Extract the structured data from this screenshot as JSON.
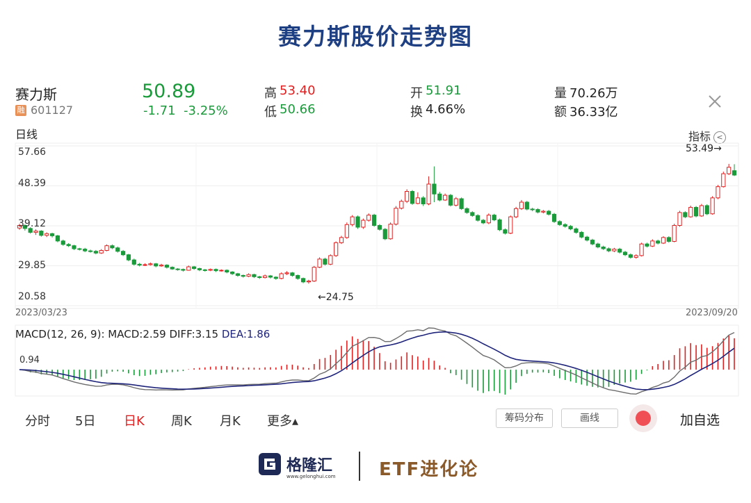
{
  "page_title": "赛力斯股价走势图",
  "stock": {
    "name": "赛力斯",
    "badge": "融",
    "code": "601127",
    "price": "50.89",
    "change": "-1.71",
    "change_pct": "-3.25%"
  },
  "quote": {
    "high_label": "高",
    "high": "53.40",
    "low_label": "低",
    "low": "50.66",
    "open_label": "开",
    "open": "51.91",
    "turnover_label": "换",
    "turnover": "4.66%",
    "volume_label": "量",
    "volume": "70.26万",
    "amount_label": "额",
    "amount": "36.33亿"
  },
  "chart": {
    "period_label": "日线",
    "indicator_label": "指标",
    "y_ticks": [
      "57.66",
      "48.39",
      "39.12",
      "29.85",
      "20.58"
    ],
    "start_date": "2023/03/23",
    "end_date": "2023/09/20",
    "max_annotation": "53.49→",
    "min_annotation": "←24.75"
  },
  "macd": {
    "title_prefix": "MACD(12, 26, 9):",
    "macd_text": "MACD:2.59",
    "diff_text": "DIFF:3.15",
    "dea_text": "DEA:1.86",
    "y_tick": "0.94"
  },
  "tabs": [
    {
      "label": "分时"
    },
    {
      "label": "5日"
    },
    {
      "label": "日K"
    },
    {
      "label": "周K"
    },
    {
      "label": "月K"
    },
    {
      "label": "更多▴"
    }
  ],
  "buttons": {
    "chips": "筹码分布",
    "draw": "画线",
    "add_watch": "加自选"
  },
  "footer": {
    "logo_name": "格隆汇",
    "logo_url": "www.gelonghui.com",
    "brand": "ETF进化论"
  },
  "colors": {
    "up": "#e02020",
    "down": "#1a9a3a",
    "title": "#1e3f82",
    "dif": "#6b6b6b",
    "dea": "#1e237a"
  },
  "chart_data": {
    "type": "candlestick",
    "title": "赛力斯股价走势图",
    "x_range": [
      "2023/03/23",
      "2023/09/20"
    ],
    "ylim": [
      20.58,
      57.66
    ],
    "y_ticks": [
      57.66,
      48.39,
      39.12,
      29.85,
      20.58
    ],
    "grid": true,
    "max_marker": 53.49,
    "min_marker": 24.75,
    "candles": [
      [
        38.6,
        39.2,
        39.6,
        38.2
      ],
      [
        39.2,
        38.5,
        39.5,
        38.0
      ],
      [
        38.5,
        37.6,
        38.8,
        37.3
      ],
      [
        37.6,
        37.9,
        38.3,
        37.0
      ],
      [
        37.9,
        36.9,
        38.1,
        36.6
      ],
      [
        36.9,
        37.3,
        37.6,
        36.5
      ],
      [
        37.3,
        36.8,
        37.5,
        36.4
      ],
      [
        36.8,
        35.6,
        37.0,
        35.3
      ],
      [
        35.6,
        34.8,
        35.9,
        34.5
      ],
      [
        34.8,
        34.5,
        35.1,
        34.2
      ],
      [
        34.5,
        33.8,
        34.7,
        33.5
      ],
      [
        33.8,
        33.7,
        34.0,
        33.4
      ],
      [
        33.7,
        33.3,
        34.0,
        33.0
      ],
      [
        33.3,
        33.2,
        33.6,
        32.9
      ],
      [
        33.2,
        32.8,
        33.5,
        32.5
      ],
      [
        32.8,
        33.4,
        33.7,
        32.6
      ],
      [
        33.4,
        34.5,
        34.8,
        33.2
      ],
      [
        34.5,
        34.0,
        34.8,
        33.7
      ],
      [
        34.0,
        33.2,
        34.3,
        32.9
      ],
      [
        33.2,
        32.4,
        33.5,
        32.1
      ],
      [
        32.4,
        31.2,
        32.6,
        30.9
      ],
      [
        31.2,
        30.2,
        31.5,
        29.9
      ],
      [
        30.2,
        30.0,
        30.5,
        29.7
      ],
      [
        30.0,
        30.1,
        30.4,
        29.8
      ],
      [
        30.1,
        30.3,
        30.6,
        29.9
      ],
      [
        30.3,
        29.8,
        30.5,
        29.5
      ],
      [
        29.8,
        30.0,
        30.3,
        29.6
      ],
      [
        30.0,
        29.5,
        30.2,
        29.2
      ],
      [
        29.5,
        29.1,
        29.7,
        28.9
      ],
      [
        29.1,
        29.0,
        29.3,
        28.7
      ],
      [
        29.0,
        28.8,
        29.2,
        28.5
      ],
      [
        28.8,
        29.6,
        29.9,
        28.7
      ],
      [
        29.6,
        29.2,
        29.8,
        28.9
      ],
      [
        29.2,
        28.9,
        29.4,
        28.6
      ],
      [
        28.9,
        28.8,
        29.1,
        28.5
      ],
      [
        28.8,
        29.0,
        29.2,
        28.6
      ],
      [
        29.0,
        28.7,
        29.2,
        28.4
      ],
      [
        28.7,
        28.8,
        29.0,
        28.5
      ],
      [
        28.8,
        28.4,
        29.0,
        28.1
      ],
      [
        28.4,
        28.0,
        28.6,
        27.7
      ],
      [
        28.0,
        27.6,
        28.2,
        27.3
      ],
      [
        27.6,
        27.4,
        27.8,
        27.1
      ],
      [
        27.4,
        27.8,
        28.1,
        27.2
      ],
      [
        27.8,
        27.3,
        28.0,
        27.0
      ],
      [
        27.3,
        27.1,
        27.5,
        26.8
      ],
      [
        27.1,
        27.5,
        27.8,
        26.9
      ],
      [
        27.5,
        27.2,
        27.7,
        26.9
      ],
      [
        27.2,
        26.9,
        27.4,
        26.6
      ],
      [
        26.9,
        28.0,
        28.3,
        26.7
      ],
      [
        28.0,
        28.2,
        28.6,
        27.7
      ],
      [
        28.2,
        27.6,
        28.4,
        27.3
      ],
      [
        27.6,
        26.9,
        27.8,
        26.6
      ],
      [
        26.9,
        26.1,
        27.1,
        25.8
      ],
      [
        26.1,
        26.3,
        26.6,
        25.7
      ],
      [
        26.3,
        29.5,
        29.8,
        26.1
      ],
      [
        29.5,
        31.4,
        31.8,
        29.3
      ],
      [
        31.4,
        30.2,
        31.7,
        29.9
      ],
      [
        30.2,
        32.2,
        32.5,
        30.0
      ],
      [
        32.2,
        35.2,
        35.5,
        31.9
      ],
      [
        35.2,
        36.4,
        36.8,
        34.9
      ],
      [
        36.4,
        39.4,
        39.9,
        36.1
      ],
      [
        39.4,
        41.2,
        41.6,
        39.0
      ],
      [
        41.2,
        38.8,
        41.5,
        38.4
      ],
      [
        38.8,
        40.4,
        40.8,
        38.4
      ],
      [
        40.4,
        41.6,
        42.0,
        40.1
      ],
      [
        41.6,
        39.2,
        41.9,
        38.9
      ],
      [
        39.2,
        38.3,
        39.5,
        38.0
      ],
      [
        38.3,
        36.1,
        38.6,
        35.8
      ],
      [
        36.1,
        39.5,
        39.9,
        35.9
      ],
      [
        39.5,
        43.2,
        43.7,
        39.2
      ],
      [
        43.2,
        44.8,
        45.2,
        42.9
      ],
      [
        44.8,
        47.1,
        47.6,
        44.4
      ],
      [
        47.1,
        44.3,
        47.4,
        44.0
      ],
      [
        44.3,
        45.6,
        46.9,
        44.1
      ],
      [
        45.6,
        44.2,
        46.0,
        43.7
      ],
      [
        44.2,
        48.8,
        50.6,
        43.9
      ],
      [
        48.8,
        46.5,
        52.9,
        44.6
      ],
      [
        46.5,
        45.1,
        47.0,
        44.8
      ],
      [
        45.1,
        46.2,
        46.6,
        44.9
      ],
      [
        46.2,
        43.9,
        46.5,
        43.6
      ],
      [
        43.9,
        45.4,
        45.8,
        43.6
      ],
      [
        45.4,
        43.1,
        45.7,
        42.8
      ],
      [
        43.1,
        42.2,
        43.4,
        41.9
      ],
      [
        42.2,
        41.5,
        42.5,
        41.2
      ],
      [
        41.5,
        40.4,
        41.8,
        40.1
      ],
      [
        40.4,
        39.8,
        40.7,
        39.5
      ],
      [
        39.8,
        41.6,
        42.0,
        39.5
      ],
      [
        41.6,
        40.5,
        41.9,
        40.2
      ],
      [
        40.5,
        38.2,
        40.8,
        37.9
      ],
      [
        38.2,
        37.4,
        38.5,
        37.1
      ],
      [
        37.4,
        41.2,
        41.5,
        37.2
      ],
      [
        41.2,
        43.1,
        43.5,
        40.9
      ],
      [
        43.1,
        44.6,
        45.1,
        42.8
      ],
      [
        44.6,
        43.0,
        44.9,
        42.7
      ],
      [
        43.0,
        42.9,
        43.3,
        42.5
      ],
      [
        42.9,
        42.3,
        43.2,
        42.0
      ],
      [
        42.3,
        42.5,
        42.8,
        42.0
      ],
      [
        42.5,
        41.8,
        42.8,
        41.5
      ],
      [
        41.8,
        40.1,
        42.1,
        39.8
      ],
      [
        40.1,
        39.4,
        40.4,
        39.1
      ],
      [
        39.4,
        39.0,
        39.7,
        38.7
      ],
      [
        39.0,
        38.4,
        39.3,
        38.1
      ],
      [
        38.4,
        37.6,
        38.7,
        37.3
      ],
      [
        37.6,
        36.5,
        37.9,
        36.2
      ],
      [
        36.5,
        35.8,
        36.8,
        35.5
      ],
      [
        35.8,
        34.9,
        36.1,
        34.6
      ],
      [
        34.9,
        34.2,
        35.2,
        33.9
      ],
      [
        34.2,
        33.8,
        34.5,
        33.5
      ],
      [
        33.8,
        33.3,
        34.1,
        33.0
      ],
      [
        33.3,
        33.7,
        34.0,
        33.0
      ],
      [
        33.7,
        33.0,
        34.0,
        32.7
      ],
      [
        33.0,
        32.4,
        33.3,
        32.1
      ],
      [
        32.4,
        31.8,
        32.7,
        31.5
      ],
      [
        31.8,
        32.2,
        32.5,
        31.5
      ],
      [
        32.2,
        34.9,
        35.2,
        32.0
      ],
      [
        34.9,
        34.4,
        35.2,
        34.1
      ],
      [
        34.4,
        35.6,
        36.0,
        34.2
      ],
      [
        35.6,
        35.1,
        35.9,
        34.8
      ],
      [
        35.1,
        36.4,
        36.7,
        34.9
      ],
      [
        36.4,
        35.5,
        36.7,
        35.2
      ],
      [
        35.5,
        39.2,
        39.6,
        35.3
      ],
      [
        39.2,
        42.2,
        42.6,
        38.9
      ],
      [
        42.2,
        41.2,
        42.5,
        40.9
      ],
      [
        41.2,
        43.4,
        43.8,
        41.0
      ],
      [
        43.4,
        41.4,
        43.7,
        41.1
      ],
      [
        41.4,
        43.8,
        44.2,
        41.2
      ],
      [
        43.8,
        41.9,
        44.1,
        41.6
      ],
      [
        41.9,
        45.6,
        46.0,
        41.7
      ],
      [
        45.6,
        48.2,
        48.6,
        45.3
      ],
      [
        48.2,
        51.2,
        51.7,
        48.0
      ],
      [
        51.2,
        52.7,
        53.49,
        50.9
      ],
      [
        51.91,
        50.89,
        53.4,
        50.66
      ]
    ],
    "macd": {
      "title": "MACD(12, 26, 9)",
      "MACD": 2.59,
      "DIFF": 3.15,
      "DEA": 1.86,
      "y_tick": 0.94
    }
  }
}
